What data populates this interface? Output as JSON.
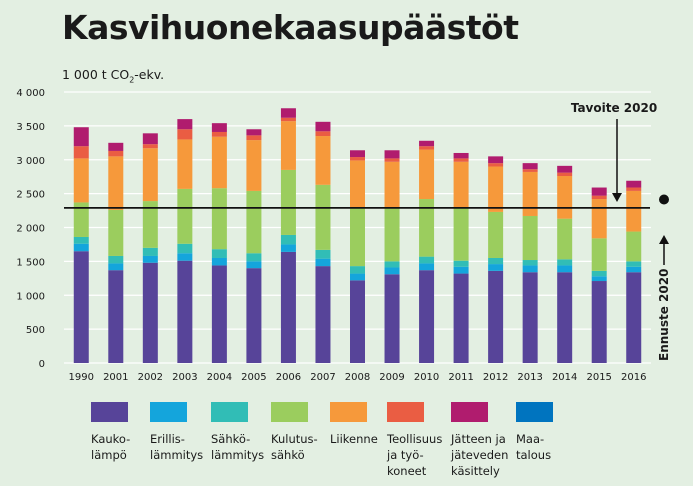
{
  "title": "Kasvihuonekaasupäästöt",
  "unit_label": "1 000 t CO",
  "unit_sub": "2",
  "unit_suffix": "-ekv.",
  "chart_data": {
    "type": "bar",
    "stacked": true,
    "categories": [
      "1990",
      "2001",
      "2002",
      "2003",
      "2004",
      "2005",
      "2006",
      "2007",
      "2008",
      "2009",
      "2010",
      "2011",
      "2012",
      "2013",
      "2014",
      "2015",
      "2016"
    ],
    "ylim": [
      0,
      4000
    ],
    "yticks": [
      0,
      500,
      1000,
      1500,
      2000,
      2500,
      3000,
      3500,
      4000
    ],
    "ytick_labels": [
      "0",
      "500",
      "1 000",
      "1 500",
      "2 000",
      "2 500",
      "3 000",
      "3 500",
      "4 000"
    ],
    "series": [
      {
        "name": "Kaukolämpö",
        "color": "#574499",
        "values": [
          1650,
          1370,
          1480,
          1510,
          1440,
          1400,
          1640,
          1430,
          1220,
          1310,
          1370,
          1320,
          1360,
          1340,
          1340,
          1210,
          1340
        ]
      },
      {
        "name": "Erillislämmitys",
        "color": "#14a5dc",
        "values": [
          110,
          100,
          100,
          110,
          110,
          100,
          110,
          110,
          100,
          100,
          100,
          100,
          100,
          100,
          100,
          70,
          80
        ]
      },
      {
        "name": "Sähkölämmitys",
        "color": "#31bdb6",
        "values": [
          100,
          110,
          120,
          140,
          130,
          120,
          140,
          130,
          110,
          90,
          100,
          90,
          90,
          80,
          90,
          80,
          80
        ]
      },
      {
        "name": "Kulutussähkö",
        "color": "#9bcd5e",
        "values": [
          510,
          680,
          690,
          810,
          900,
          920,
          960,
          960,
          870,
          780,
          850,
          780,
          680,
          650,
          600,
          480,
          440
        ]
      },
      {
        "name": "Liikenne",
        "color": "#f6993b",
        "values": [
          650,
          790,
          780,
          730,
          760,
          750,
          720,
          720,
          690,
          690,
          730,
          680,
          670,
          650,
          630,
          580,
          600
        ]
      },
      {
        "name": "Teollisuus ja työkoneet",
        "color": "#ea5d43",
        "values": [
          180,
          80,
          60,
          150,
          70,
          70,
          50,
          70,
          50,
          50,
          50,
          50,
          50,
          40,
          50,
          50,
          50
        ]
      },
      {
        "name": "Jätteen ja jäteveden käsittely",
        "color": "#b01c6e",
        "values": [
          280,
          120,
          160,
          150,
          130,
          90,
          140,
          140,
          100,
          120,
          80,
          80,
          100,
          90,
          100,
          120,
          100
        ]
      },
      {
        "name": "Maatalous",
        "color": "#0074bf",
        "values": [
          0,
          0,
          0,
          0,
          0,
          0,
          0,
          0,
          0,
          0,
          0,
          0,
          0,
          0,
          0,
          0,
          0
        ]
      }
    ],
    "legend_labels": [
      "Kauko-\nlämpö",
      "Erillis-\nlämmitys",
      "Sähkö-\nlämmitys",
      "Kulutus-\nsähkö",
      "Liikenne",
      "Teollisuus\nja työ-\nkoneet",
      "Jätteen ja\njäteveden\nkäsittely",
      "Maa-\ntalous"
    ],
    "target_line": {
      "label": "Tavoite 2020",
      "value": 2290
    },
    "forecast_point": {
      "label": "Ennuste 2020",
      "value": 2000
    }
  }
}
